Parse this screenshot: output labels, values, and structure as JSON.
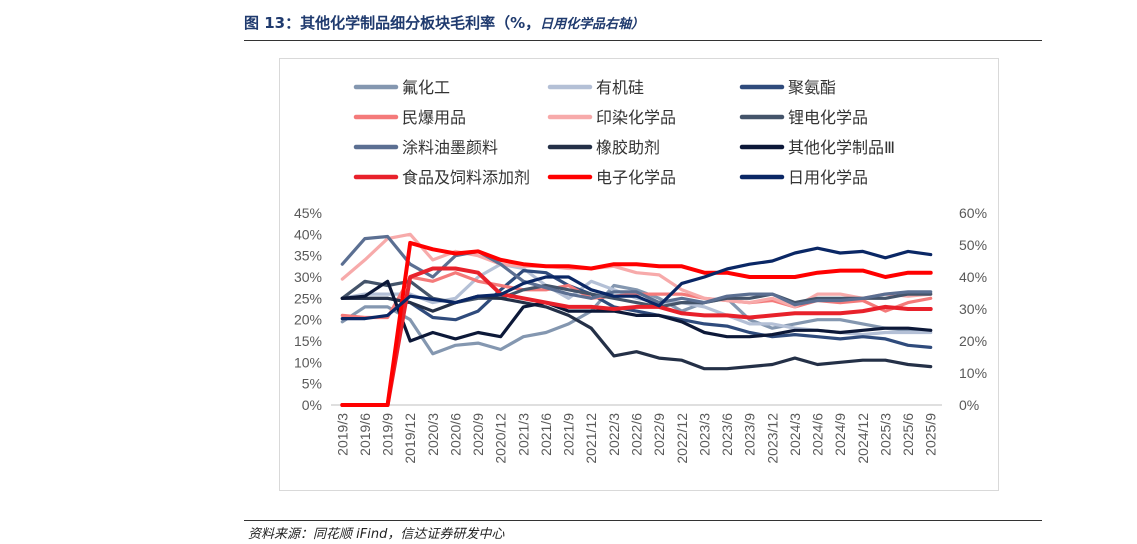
{
  "header": {
    "title": "图 13：其他化学制品细分板块毛利率（%，",
    "subtitle": "日用化学品右轴）"
  },
  "footer": {
    "source": "资料来源：同花顺 iFind，信达证券研发中心"
  },
  "chart_data": {
    "type": "line",
    "x": [
      "2019/3",
      "2019/6",
      "2019/9",
      "2019/12",
      "2020/3",
      "2020/6",
      "2020/9",
      "2020/12",
      "2021/3",
      "2021/6",
      "2021/9",
      "2021/12",
      "2022/3",
      "2022/6",
      "2022/9",
      "2022/12",
      "2023/3",
      "2023/6",
      "2023/9",
      "2023/12",
      "2024/3",
      "2024/6",
      "2024/9",
      "2024/12",
      "2025/3",
      "2025/6",
      "2025/9"
    ],
    "x_tick_labels": [
      "2019/3",
      "2019/6",
      "2019/9",
      "2019/12",
      "2020/3",
      "2020/6",
      "2020/9",
      "2020/12",
      "2021/3",
      "2021/6",
      "2021/9",
      "2021/12",
      "2022/3",
      "2022/6",
      "2022/9",
      "2022/12",
      "2023/3",
      "2023/6",
      "2023/9",
      "2023/12",
      "2024/3",
      "2024/6",
      "2024/9",
      "2024/12",
      "2025/3",
      "2025/6",
      "2025/9"
    ],
    "y_left": {
      "ylim": [
        0,
        45
      ],
      "ticks": [
        "0%",
        "5%",
        "10%",
        "15%",
        "20%",
        "25%",
        "30%",
        "35%",
        "40%",
        "45%"
      ]
    },
    "y_right": {
      "ylim": [
        0,
        60
      ],
      "ticks": [
        "0%",
        "10%",
        "20%",
        "30%",
        "40%",
        "50%",
        "60%"
      ]
    },
    "series": [
      {
        "name": "氟化工",
        "color": "#8497b0",
        "axis": "left",
        "values": [
          19.5,
          23,
          23,
          20,
          12,
          14,
          14.5,
          13,
          16,
          17,
          19,
          22,
          28,
          27,
          25,
          22,
          24,
          25,
          20,
          18,
          19,
          20,
          20,
          19,
          18,
          17.5,
          17.5
        ]
      },
      {
        "name": "有机硅",
        "color": "#b4c0d6",
        "axis": "left",
        "values": [
          25,
          26,
          26,
          26,
          24,
          25,
          30,
          33,
          32,
          28,
          25,
          29,
          27,
          25,
          24,
          24,
          23,
          21,
          19,
          19,
          18,
          17.5,
          17,
          16.5,
          17,
          17,
          17
        ]
      },
      {
        "name": "聚氨酯",
        "color": "#2f4b7c",
        "axis": "left",
        "values": [
          25,
          25,
          25,
          24,
          20.5,
          20,
          22,
          27,
          31.5,
          31,
          28,
          26,
          23,
          22,
          21,
          20,
          19,
          18.5,
          17,
          16,
          16.5,
          16,
          15.5,
          16,
          15.5,
          14,
          13.5
        ]
      },
      {
        "name": "民爆用品",
        "color": "#f47a7a",
        "axis": "left",
        "values": [
          21,
          20.5,
          20.5,
          30,
          29,
          31,
          29,
          28,
          27,
          27,
          28,
          25,
          25.5,
          26,
          26,
          26,
          25,
          24.5,
          24,
          24.5,
          23,
          24.5,
          24,
          24.5,
          22,
          24,
          25
        ]
      },
      {
        "name": "印染化学品",
        "color": "#f7aaaa",
        "axis": "left",
        "values": [
          29.5,
          34,
          39,
          40,
          34,
          36,
          35,
          33,
          32.5,
          32.5,
          32,
          32,
          32.5,
          31,
          30.5,
          27,
          25,
          24.5,
          24,
          25,
          23,
          26,
          26,
          25,
          26,
          25.5,
          26
        ]
      },
      {
        "name": "锂电化学品",
        "color": "#44546a",
        "axis": "left",
        "values": [
          25,
          29,
          28,
          29,
          25,
          24,
          25,
          25,
          27,
          28,
          27,
          26,
          25,
          24,
          23,
          24,
          24,
          25,
          25,
          26,
          24,
          25,
          25,
          25,
          25,
          26,
          26
        ]
      },
      {
        "name": "涂料油墨颜料",
        "color": "#5b6f92",
        "axis": "left",
        "values": [
          33,
          39,
          39.5,
          33,
          30,
          35,
          36,
          33,
          29,
          27.5,
          26,
          25,
          26.5,
          26.5,
          24,
          25,
          24,
          25.5,
          26,
          26,
          23.5,
          24.5,
          24.5,
          25,
          26,
          26.5,
          26.5
        ]
      },
      {
        "name": "橡胶助剂",
        "color": "#243047",
        "axis": "left",
        "values": [
          25,
          25,
          25,
          24,
          22,
          24,
          25.5,
          25,
          24,
          23,
          21,
          18,
          11.5,
          12.5,
          11,
          10.5,
          8.5,
          8.5,
          9,
          9.5,
          11,
          9.5,
          10,
          10.5,
          10.5,
          9.5,
          9
        ]
      },
      {
        "name": "其他化学制品Ⅲ",
        "color": "#0c1838",
        "axis": "left",
        "values": [
          25,
          25.5,
          29,
          15,
          17,
          15.5,
          17,
          16,
          23,
          24,
          22,
          22,
          22,
          21,
          21,
          19.5,
          17,
          16,
          16,
          16.5,
          17.5,
          17.5,
          17,
          17.5,
          18,
          18,
          17.5
        ]
      },
      {
        "name": "食品及饲料添加剂",
        "color": "#e8212b",
        "axis": "left",
        "values": [
          0,
          0,
          0,
          30,
          32,
          32,
          31,
          26,
          25,
          24,
          23,
          23,
          22.5,
          23,
          23,
          21.5,
          21,
          21,
          20.5,
          21,
          21.5,
          21.5,
          21.5,
          22,
          23,
          22.5,
          22.5
        ]
      },
      {
        "name": "电子化学品",
        "color": "#ff0000",
        "axis": "left",
        "values": [
          0,
          0,
          0,
          38,
          36.5,
          35.5,
          36,
          34,
          33,
          32.5,
          32.5,
          32,
          33,
          33,
          32.5,
          32.5,
          31,
          31,
          30,
          30,
          30,
          31,
          31.5,
          31.5,
          30,
          31,
          31
        ]
      },
      {
        "name": "日用化学品",
        "color": "#0a2765",
        "axis": "right",
        "values": [
          27,
          27,
          28,
          34,
          33,
          32,
          34,
          34.5,
          38,
          40,
          40,
          36,
          34,
          34,
          31,
          38,
          40,
          42.5,
          44,
          45,
          47.5,
          49,
          47.5,
          48,
          46,
          48,
          47
        ]
      }
    ]
  }
}
